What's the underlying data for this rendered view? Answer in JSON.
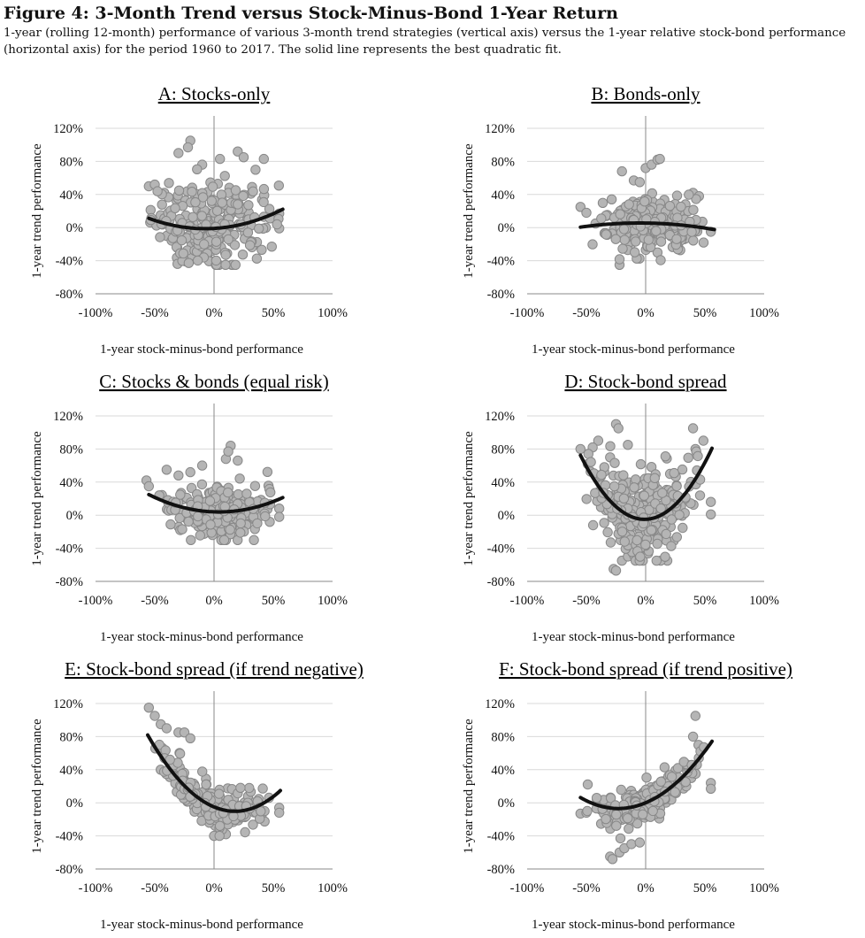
{
  "figure": {
    "title": "Figure 4: 3-Month Trend versus Stock-Minus-Bond 1-Year Return",
    "caption": "1-year (rolling 12-month) performance of various 3-month trend strategies (vertical axis) versus the 1-year relative stock-bond performance (horizontal axis) for the period 1960 to 2017. The solid line represents the best quadratic fit."
  },
  "style": {
    "point_fill": "#b5b5b5",
    "point_stroke": "#888888",
    "fit_color": "#111111",
    "grid_color": "#d9d9d9",
    "axis_color": "#888888"
  },
  "chart_data": [
    {
      "type": "scatter",
      "title": "A: Stocks-only",
      "xlabel": "1-year stock-minus-bond performance",
      "ylabel": "1-year trend performance",
      "xlim": [
        -1.0,
        1.0
      ],
      "ylim": [
        -0.8,
        1.2
      ],
      "xticks": [
        -1.0,
        -0.5,
        0,
        0.5,
        1.0
      ],
      "xtick_labels": [
        "-100%",
        "-50%",
        "0%",
        "50%",
        "100%"
      ],
      "yticks": [
        1.2,
        0.8,
        0.4,
        0,
        -0.4,
        -0.8
      ],
      "ytick_labels": [
        "120%",
        "80%",
        "40%",
        "0%",
        "-40%",
        "-80%"
      ],
      "grid": true,
      "fit": {
        "a": 0.55,
        "b": 0.08,
        "c": -0.01,
        "x_range": [
          -0.55,
          0.58
        ]
      },
      "cloud": {
        "x_min": -0.55,
        "x_max": 0.55,
        "center": 0.0,
        "spread": 0.26,
        "noise": 0.24,
        "y_min": -0.45,
        "y_max": 0.95,
        "n": 260
      },
      "points": [
        [
          -0.55,
          0.5
        ],
        [
          -0.5,
          0.52
        ],
        [
          -0.42,
          0.42
        ],
        [
          -0.45,
          0.15
        ],
        [
          -0.4,
          -0.1
        ],
        [
          -0.3,
          0.9
        ],
        [
          -0.2,
          1.05
        ],
        [
          -0.22,
          0.97
        ],
        [
          -0.1,
          0.76
        ],
        [
          0.05,
          0.83
        ],
        [
          0.2,
          0.92
        ],
        [
          0.25,
          0.85
        ],
        [
          0.42,
          0.83
        ],
        [
          0.55,
          0.17
        ],
        [
          0.55,
          -0.01
        ],
        [
          0.35,
          0.7
        ],
        [
          -0.05,
          -0.38
        ],
        [
          0.15,
          -0.45
        ],
        [
          -0.25,
          -0.35
        ]
      ]
    },
    {
      "type": "scatter",
      "title": "B: Bonds-only",
      "xlabel": "1-year stock-minus-bond performance",
      "ylabel": "1-year trend performance",
      "xlim": [
        -1.0,
        1.0
      ],
      "ylim": [
        -0.8,
        1.2
      ],
      "xticks": [
        -1.0,
        -0.5,
        0,
        0.5,
        1.0
      ],
      "xtick_labels": [
        "-100%",
        "-50%",
        "0%",
        "50%",
        "100%"
      ],
      "yticks": [
        1.2,
        0.8,
        0.4,
        0,
        -0.4,
        -0.8
      ],
      "ytick_labels": [
        "120%",
        "80%",
        "40%",
        "0%",
        "-40%",
        "-80%"
      ],
      "grid": true,
      "fit": {
        "a": -0.2,
        "b": -0.02,
        "c": 0.055,
        "x_range": [
          -0.55,
          0.58
        ]
      },
      "cloud": {
        "x_min": -0.5,
        "x_max": 0.5,
        "center": 0.05,
        "spread": 0.22,
        "noise": 0.17,
        "y_min": -0.4,
        "y_max": 0.75,
        "n": 260
      },
      "points": [
        [
          -0.55,
          0.25
        ],
        [
          -0.5,
          0.18
        ],
        [
          -0.2,
          0.68
        ],
        [
          -0.1,
          0.57
        ],
        [
          0.0,
          0.72
        ],
        [
          0.05,
          0.76
        ],
        [
          0.1,
          0.82
        ],
        [
          0.12,
          0.83
        ],
        [
          -0.05,
          0.55
        ],
        [
          0.4,
          0.42
        ],
        [
          0.45,
          0.38
        ],
        [
          0.55,
          -0.05
        ],
        [
          -0.22,
          -0.45
        ],
        [
          0.1,
          -0.3
        ]
      ]
    },
    {
      "type": "scatter",
      "title": "C: Stocks & bonds (equal risk)",
      "xlabel": "1-year stock-minus-bond performance",
      "ylabel": "1-year trend performance",
      "xlim": [
        -1.0,
        1.0
      ],
      "ylim": [
        -0.8,
        1.2
      ],
      "xticks": [
        -1.0,
        -0.5,
        0,
        0.5,
        1.0
      ],
      "xtick_labels": [
        "-100%",
        "-50%",
        "0%",
        "50%",
        "100%"
      ],
      "yticks": [
        1.2,
        0.8,
        0.4,
        0,
        -0.4,
        -0.8
      ],
      "ytick_labels": [
        "120%",
        "80%",
        "40%",
        "0%",
        "-40%",
        "-80%"
      ],
      "grid": true,
      "fit": {
        "a": 0.6,
        "b": -0.05,
        "c": 0.04,
        "x_range": [
          -0.55,
          0.58
        ]
      },
      "cloud": {
        "x_min": -0.5,
        "x_max": 0.52,
        "center": 0.04,
        "spread": 0.22,
        "noise": 0.15,
        "y_min": -0.3,
        "y_max": 0.55,
        "n": 260
      },
      "points": [
        [
          -0.57,
          0.42
        ],
        [
          -0.55,
          0.35
        ],
        [
          -0.4,
          0.55
        ],
        [
          -0.3,
          0.48
        ],
        [
          -0.1,
          0.6
        ],
        [
          0.1,
          0.68
        ],
        [
          0.14,
          0.84
        ],
        [
          0.12,
          0.77
        ],
        [
          0.2,
          0.66
        ],
        [
          0.55,
          0.08
        ],
        [
          0.55,
          -0.02
        ],
        [
          -0.2,
          0.52
        ]
      ]
    },
    {
      "type": "scatter",
      "title": "D: Stock-bond spread",
      "xlabel": "1-year stock-minus-bond performance",
      "ylabel": "1-year trend performance",
      "xlim": [
        -1.0,
        1.0
      ],
      "ylim": [
        -0.8,
        1.2
      ],
      "xticks": [
        -1.0,
        -0.5,
        0,
        0.5,
        1.0
      ],
      "xtick_labels": [
        "-100%",
        "-50%",
        "0%",
        "50%",
        "100%"
      ],
      "yticks": [
        1.2,
        0.8,
        0.4,
        0,
        -0.4,
        -0.8
      ],
      "ytick_labels": [
        "120%",
        "80%",
        "40%",
        "0%",
        "-40%",
        "-80%"
      ],
      "grid": true,
      "fit": {
        "a": 2.65,
        "b": 0.05,
        "c": -0.05,
        "x_range": [
          -0.55,
          0.56
        ]
      },
      "cloud": {
        "x_min": -0.5,
        "x_max": 0.52,
        "center": -0.05,
        "spread": 0.24,
        "noise": 0.25,
        "y_min": -0.55,
        "y_max": 0.9,
        "n": 300
      },
      "points": [
        [
          -0.55,
          0.8
        ],
        [
          -0.4,
          0.9
        ],
        [
          -0.25,
          1.1
        ],
        [
          -0.23,
          1.05
        ],
        [
          -0.15,
          0.85
        ],
        [
          -0.3,
          0.7
        ],
        [
          0.4,
          1.05
        ],
        [
          0.42,
          0.8
        ],
        [
          0.55,
          0.16
        ],
        [
          0.55,
          0.01
        ],
        [
          -0.27,
          -0.65
        ],
        [
          -0.25,
          -0.67
        ],
        [
          -0.2,
          -0.55
        ],
        [
          -0.15,
          -0.5
        ]
      ]
    },
    {
      "type": "scatter",
      "title": "E: Stock-bond spread (if trend negative)",
      "xlabel": "1-year stock-minus-bond performance",
      "ylabel": "1-year trend performance",
      "xlim": [
        -1.0,
        1.0
      ],
      "ylim": [
        -0.8,
        1.2
      ],
      "xticks": [
        -1.0,
        -0.5,
        0,
        0.5,
        1.0
      ],
      "xtick_labels": [
        "-100%",
        "-50%",
        "0%",
        "50%",
        "100%"
      ],
      "yticks": [
        1.2,
        0.8,
        0.4,
        0,
        -0.4,
        -0.8
      ],
      "ytick_labels": [
        "120%",
        "80%",
        "40%",
        "0%",
        "-40%",
        "-80%"
      ],
      "grid": true,
      "fit": {
        "a": 1.7,
        "b": -0.6,
        "c": -0.05,
        "x_range": [
          -0.56,
          0.56
        ]
      },
      "cloud": {
        "x_min": -0.5,
        "x_max": 0.48,
        "center": 0.0,
        "spread": 0.22,
        "noise": 0.12,
        "y_min": -0.4,
        "y_max": 1.1,
        "n": 240
      },
      "points": [
        [
          -0.55,
          1.15
        ],
        [
          -0.5,
          1.05
        ],
        [
          -0.45,
          0.95
        ],
        [
          -0.4,
          0.9
        ],
        [
          -0.3,
          0.85
        ],
        [
          -0.25,
          0.85
        ],
        [
          -0.2,
          0.78
        ],
        [
          -0.45,
          0.4
        ],
        [
          0.55,
          -0.06
        ],
        [
          0.55,
          -0.12
        ],
        [
          0.1,
          -0.38
        ],
        [
          0.0,
          -0.4
        ]
      ]
    },
    {
      "type": "scatter",
      "title": "F: Stock-bond spread (if trend positive)",
      "xlabel": "1-year stock-minus-bond performance",
      "ylabel": "1-year trend performance",
      "xlim": [
        -1.0,
        1.0
      ],
      "ylim": [
        -0.8,
        1.2
      ],
      "xticks": [
        -1.0,
        -0.5,
        0,
        0.5,
        1.0
      ],
      "xtick_labels": [
        "-100%",
        "-50%",
        "0%",
        "50%",
        "100%"
      ],
      "yticks": [
        1.2,
        0.8,
        0.4,
        0,
        -0.4,
        -0.8
      ],
      "ytick_labels": [
        "120%",
        "80%",
        "40%",
        "0%",
        "-40%",
        "-80%"
      ],
      "grid": true,
      "fit": {
        "a": 1.3,
        "b": 0.6,
        "c": 0.0,
        "x_range": [
          -0.55,
          0.56
        ]
      },
      "cloud": {
        "x_min": -0.5,
        "x_max": 0.5,
        "center": 0.0,
        "spread": 0.22,
        "noise": 0.1,
        "y_min": -0.45,
        "y_max": 0.7,
        "n": 240
      },
      "points": [
        [
          -0.55,
          -0.13
        ],
        [
          -0.5,
          -0.12
        ],
        [
          -0.3,
          -0.65
        ],
        [
          -0.28,
          -0.68
        ],
        [
          -0.22,
          -0.6
        ],
        [
          -0.18,
          -0.55
        ],
        [
          -0.12,
          -0.5
        ],
        [
          -0.05,
          -0.48
        ],
        [
          0.42,
          1.05
        ],
        [
          0.4,
          0.8
        ],
        [
          0.55,
          0.24
        ],
        [
          0.55,
          0.17
        ]
      ]
    }
  ]
}
